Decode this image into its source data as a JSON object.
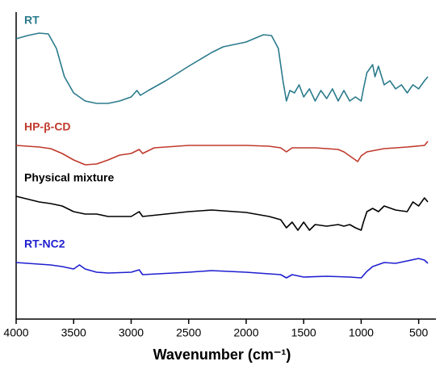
{
  "chart_data": {
    "type": "line",
    "x_label": "Wavenumber (cm⁻¹)",
    "xlim": [
      4000,
      350
    ],
    "xticks": [
      4000,
      3500,
      3000,
      2500,
      2000,
      1500,
      1000,
      500
    ],
    "ylim": [
      0,
      380
    ],
    "series": [
      {
        "name": "RT",
        "color": "#2b7b8c",
        "x": [
          4000,
          3900,
          3800,
          3720,
          3650,
          3580,
          3500,
          3400,
          3300,
          3200,
          3100,
          3000,
          2950,
          2920,
          2850,
          2700,
          2500,
          2300,
          2200,
          2000,
          1850,
          1780,
          1720,
          1680,
          1650,
          1620,
          1580,
          1540,
          1500,
          1450,
          1400,
          1350,
          1300,
          1250,
          1200,
          1150,
          1100,
          1050,
          1000,
          980,
          950,
          900,
          880,
          850,
          800,
          750,
          700,
          650,
          600,
          550,
          500,
          450,
          420
        ],
        "values": [
          347,
          351,
          354,
          353,
          335,
          300,
          280,
          270,
          267,
          267,
          270,
          275,
          283,
          277,
          283,
          295,
          313,
          330,
          337,
          343,
          352,
          351,
          335,
          295,
          270,
          283,
          280,
          290,
          275,
          285,
          270,
          283,
          273,
          285,
          270,
          283,
          270,
          275,
          270,
          285,
          305,
          315,
          300,
          313,
          290,
          295,
          285,
          290,
          280,
          290,
          285,
          295,
          300
        ]
      },
      {
        "name": "HP-β-CD",
        "color": "#c0392b",
        "x": [
          4000,
          3800,
          3700,
          3600,
          3500,
          3400,
          3300,
          3200,
          3100,
          3000,
          2930,
          2900,
          2800,
          2500,
          2000,
          1800,
          1700,
          1650,
          1600,
          1400,
          1200,
          1150,
          1080,
          1030,
          1000,
          950,
          800,
          600,
          450,
          420
        ],
        "values": [
          215,
          213,
          211,
          205,
          197,
          191,
          192,
          197,
          203,
          205,
          210,
          205,
          212,
          215,
          215,
          214,
          212,
          207,
          212,
          212,
          210,
          207,
          200,
          195,
          202,
          207,
          211,
          213,
          215,
          220
        ]
      },
      {
        "name": "Physical mixture",
        "color": "#000000",
        "x": [
          4000,
          3800,
          3700,
          3600,
          3500,
          3400,
          3300,
          3200,
          3000,
          2930,
          2900,
          2700,
          2500,
          2300,
          2000,
          1800,
          1700,
          1650,
          1600,
          1550,
          1500,
          1450,
          1400,
          1300,
          1200,
          1150,
          1100,
          1050,
          1000,
          980,
          950,
          900,
          850,
          800,
          700,
          600,
          550,
          500,
          450,
          420
        ],
        "values": [
          152,
          145,
          143,
          140,
          133,
          130,
          130,
          127,
          127,
          133,
          127,
          130,
          133,
          135,
          132,
          127,
          123,
          113,
          120,
          110,
          120,
          110,
          117,
          115,
          117,
          115,
          117,
          113,
          110,
          120,
          133,
          137,
          133,
          140,
          135,
          133,
          145,
          140,
          150,
          145
        ]
      },
      {
        "name": "RT-NC2",
        "color": "#1f1fd0",
        "x": [
          4000,
          3700,
          3600,
          3500,
          3450,
          3400,
          3300,
          3200,
          3000,
          2930,
          2900,
          2500,
          2300,
          2000,
          1700,
          1650,
          1600,
          1500,
          1300,
          1100,
          1000,
          950,
          900,
          800,
          700,
          600,
          500,
          450,
          420
        ],
        "values": [
          70,
          67,
          65,
          62,
          67,
          62,
          58,
          57,
          58,
          61,
          55,
          58,
          60,
          58,
          55,
          51,
          55,
          52,
          53,
          52,
          51,
          59,
          65,
          70,
          69,
          72,
          75,
          73,
          69
        ]
      }
    ]
  }
}
